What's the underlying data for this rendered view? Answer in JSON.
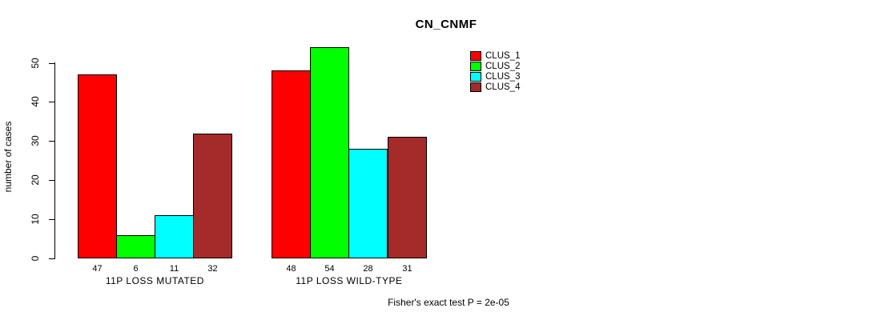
{
  "title": "CN_CNMF",
  "footnote": "Fisher's exact test P = 2e-05",
  "chart_data": {
    "type": "bar",
    "title": "CN_CNMF",
    "xlabel": "",
    "ylabel": "number of cases",
    "categories": [
      "11P LOSS MUTATED",
      "11P LOSS WILD-TYPE"
    ],
    "series": [
      {
        "name": "CLUS_1",
        "color": "#FF0000",
        "values": [
          47,
          48
        ]
      },
      {
        "name": "CLUS_2",
        "color": "#00FF00",
        "values": [
          6,
          54
        ]
      },
      {
        "name": "CLUS_3",
        "color": "#00FFFF",
        "values": [
          11,
          28
        ]
      },
      {
        "name": "CLUS_4",
        "color": "#A52A2A",
        "values": [
          32,
          31
        ]
      }
    ],
    "bar_value_labels": [
      [
        47,
        6,
        11,
        32
      ],
      [
        48,
        54,
        28,
        31
      ]
    ],
    "yticks": [
      0,
      10,
      20,
      30,
      40,
      50
    ],
    "ylim": [
      0,
      54
    ],
    "grid": false,
    "legend_position": "top-right",
    "legend_entries": [
      "CLUS_1",
      "CLUS_2",
      "CLUS_3",
      "CLUS_4"
    ],
    "annotation": "Fisher's exact test P = 2e-05"
  }
}
